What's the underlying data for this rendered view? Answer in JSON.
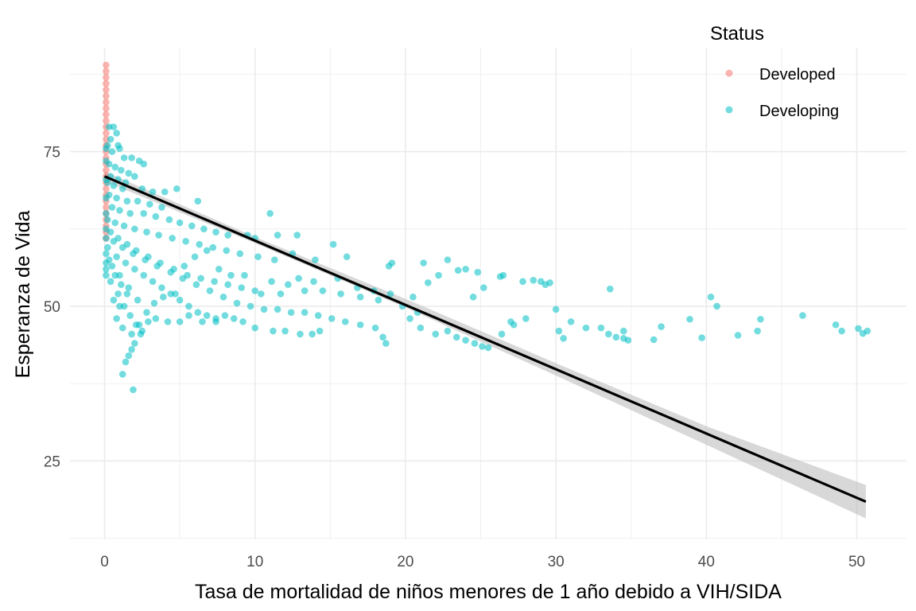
{
  "chart_data": {
    "type": "scatter",
    "title": "",
    "xlabel": "Tasa de mortalidad de niños menores de 1 año debido a VIH/SIDA",
    "ylabel": "Esperanza de Vida",
    "xlim": [
      -2.3,
      53.3
    ],
    "ylim": [
      12.3,
      91.8
    ],
    "x_ticks": [
      0,
      10,
      20,
      30,
      40,
      50
    ],
    "y_ticks": [
      25,
      50,
      75
    ],
    "grid": true,
    "legend": {
      "title": "Status",
      "position": "top-right"
    },
    "colors": {
      "Developed": "#F8766D",
      "Developing": "#00BFC4",
      "fit": "#000000",
      "ribbon": "#BEBEBE"
    },
    "series": [
      {
        "name": "Developed",
        "points": [
          [
            0.1,
            89.0
          ],
          [
            0.1,
            88.0
          ],
          [
            0.1,
            87.0
          ],
          [
            0.1,
            86.0
          ],
          [
            0.1,
            85.0
          ],
          [
            0.1,
            84.0
          ],
          [
            0.1,
            83.0
          ],
          [
            0.1,
            82.0
          ],
          [
            0.1,
            81.0
          ],
          [
            0.1,
            80.0
          ],
          [
            0.1,
            79.0
          ],
          [
            0.1,
            78.0
          ],
          [
            0.1,
            77.0
          ],
          [
            0.1,
            76.0
          ],
          [
            0.1,
            75.0
          ],
          [
            0.1,
            74.0
          ],
          [
            0.1,
            73.0
          ],
          [
            0.1,
            72.0
          ],
          [
            0.1,
            71.0
          ],
          [
            0.1,
            70.0
          ],
          [
            0.1,
            69.0
          ],
          [
            0.1,
            68.0
          ],
          [
            0.1,
            67.0
          ],
          [
            0.1,
            66.0
          ],
          [
            0.1,
            65.0
          ],
          [
            0.1,
            64.0
          ],
          [
            0.1,
            63.0
          ],
          [
            0.1,
            62.0
          ],
          [
            0.1,
            61.0
          ]
        ]
      },
      {
        "name": "Developing",
        "points": [
          [
            0.3,
            79.0
          ],
          [
            0.6,
            79.0
          ],
          [
            0.8,
            78.0
          ],
          [
            0.4,
            77.0
          ],
          [
            0.9,
            76.0
          ],
          [
            0.2,
            76.0
          ],
          [
            0.5,
            75.0
          ],
          [
            1.0,
            75.5
          ],
          [
            1.3,
            74.0
          ],
          [
            1.8,
            74.0
          ],
          [
            2.3,
            73.5
          ],
          [
            2.6,
            73.0
          ],
          [
            0.3,
            73.0
          ],
          [
            0.7,
            72.5
          ],
          [
            1.1,
            72.0
          ],
          [
            1.6,
            71.5
          ],
          [
            2.0,
            71.0
          ],
          [
            0.4,
            71.0
          ],
          [
            0.9,
            70.5
          ],
          [
            1.4,
            70.0
          ],
          [
            0.2,
            70.0
          ],
          [
            0.6,
            69.5
          ],
          [
            1.2,
            69.0
          ],
          [
            2.5,
            69.0
          ],
          [
            3.2,
            68.5
          ],
          [
            4.0,
            68.5
          ],
          [
            4.8,
            69.0
          ],
          [
            0.3,
            68.0
          ],
          [
            0.8,
            67.5
          ],
          [
            1.5,
            67.0
          ],
          [
            2.2,
            67.0
          ],
          [
            3.0,
            66.5
          ],
          [
            3.8,
            66.0
          ],
          [
            6.2,
            67.0
          ],
          [
            0.5,
            66.0
          ],
          [
            1.0,
            65.5
          ],
          [
            1.7,
            65.0
          ],
          [
            2.6,
            65.0
          ],
          [
            3.4,
            64.5
          ],
          [
            4.3,
            64.0
          ],
          [
            5.0,
            63.5
          ],
          [
            5.8,
            63.0
          ],
          [
            6.6,
            62.5
          ],
          [
            7.4,
            62.0
          ],
          [
            8.2,
            61.5
          ],
          [
            9.5,
            61.5
          ],
          [
            10.0,
            61.0
          ],
          [
            11.0,
            65.0
          ],
          [
            11.5,
            61.5
          ],
          [
            12.8,
            61.5
          ],
          [
            0.2,
            64.0
          ],
          [
            0.7,
            63.5
          ],
          [
            1.3,
            63.0
          ],
          [
            2.0,
            62.5
          ],
          [
            2.8,
            62.0
          ],
          [
            3.6,
            61.5
          ],
          [
            4.5,
            61.0
          ],
          [
            5.4,
            60.5
          ],
          [
            6.3,
            60.0
          ],
          [
            7.2,
            59.5
          ],
          [
            8.1,
            59.0
          ],
          [
            9.0,
            58.5
          ],
          [
            10.2,
            58.0
          ],
          [
            11.3,
            57.5
          ],
          [
            12.5,
            58.5
          ],
          [
            14.0,
            57.5
          ],
          [
            15.2,
            60.0
          ],
          [
            16.1,
            58.0
          ],
          [
            0.4,
            62.0
          ],
          [
            0.9,
            61.0
          ],
          [
            1.5,
            60.0
          ],
          [
            2.1,
            59.0
          ],
          [
            2.9,
            58.0
          ],
          [
            3.7,
            57.0
          ],
          [
            4.6,
            56.0
          ],
          [
            5.5,
            55.0
          ],
          [
            6.4,
            54.5
          ],
          [
            7.3,
            54.0
          ],
          [
            8.2,
            53.5
          ],
          [
            9.1,
            53.0
          ],
          [
            10.0,
            52.5
          ],
          [
            11.1,
            54.0
          ],
          [
            12.2,
            53.5
          ],
          [
            13.3,
            52.5
          ],
          [
            14.5,
            52.5
          ],
          [
            15.7,
            52.0
          ],
          [
            17.0,
            51.5
          ],
          [
            18.2,
            51.0
          ],
          [
            19.0,
            52.0
          ],
          [
            20.5,
            51.5
          ],
          [
            0.6,
            60.5
          ],
          [
            1.2,
            59.5
          ],
          [
            1.9,
            58.5
          ],
          [
            2.7,
            57.5
          ],
          [
            3.5,
            56.5
          ],
          [
            4.4,
            55.5
          ],
          [
            5.2,
            54.5
          ],
          [
            6.1,
            53.5
          ],
          [
            7.0,
            52.5
          ],
          [
            7.9,
            51.5
          ],
          [
            8.8,
            50.5
          ],
          [
            9.7,
            50.0
          ],
          [
            10.6,
            49.5
          ],
          [
            11.5,
            49.5
          ],
          [
            12.4,
            49.0
          ],
          [
            13.3,
            49.0
          ],
          [
            14.2,
            48.5
          ],
          [
            15.1,
            48.0
          ],
          [
            16.0,
            47.5
          ],
          [
            17.0,
            47.0
          ],
          [
            18.0,
            46.5
          ],
          [
            18.5,
            45.0
          ],
          [
            18.7,
            44.0
          ],
          [
            0.8,
            58.0
          ],
          [
            1.4,
            57.0
          ],
          [
            2.0,
            56.0
          ],
          [
            2.6,
            55.0
          ],
          [
            3.2,
            54.0
          ],
          [
            3.8,
            53.0
          ],
          [
            4.4,
            52.0
          ],
          [
            5.0,
            51.0
          ],
          [
            5.6,
            50.0
          ],
          [
            6.2,
            49.0
          ],
          [
            6.8,
            48.5
          ],
          [
            7.4,
            48.0
          ],
          [
            8.0,
            48.5
          ],
          [
            8.6,
            48.0
          ],
          [
            9.2,
            47.5
          ],
          [
            10.0,
            46.5
          ],
          [
            11.2,
            46.0
          ],
          [
            12.0,
            46.0
          ],
          [
            13.0,
            45.5
          ],
          [
            13.8,
            45.5
          ],
          [
            14.3,
            46.0
          ],
          [
            1.0,
            55.0
          ],
          [
            1.6,
            53.0
          ],
          [
            2.2,
            51.0
          ],
          [
            2.8,
            49.0
          ],
          [
            3.4,
            48.0
          ],
          [
            4.2,
            47.5
          ],
          [
            5.0,
            47.5
          ],
          [
            5.6,
            48.5
          ],
          [
            6.5,
            47.5
          ],
          [
            7.4,
            47.5
          ],
          [
            0.9,
            52.0
          ],
          [
            1.3,
            50.0
          ],
          [
            1.7,
            48.5
          ],
          [
            2.1,
            47.0
          ],
          [
            2.4,
            45.5
          ],
          [
            2.0,
            44.0
          ],
          [
            1.8,
            43.0
          ],
          [
            1.6,
            42.0
          ],
          [
            1.4,
            41.0
          ],
          [
            1.2,
            39.0
          ],
          [
            1.9,
            36.5
          ],
          [
            2.5,
            46.0
          ],
          [
            2.9,
            47.5
          ],
          [
            3.3,
            50.5
          ],
          [
            3.9,
            51.5
          ],
          [
            4.7,
            52.0
          ],
          [
            5.3,
            56.5
          ],
          [
            6.0,
            58.0
          ],
          [
            6.8,
            59.0
          ],
          [
            7.6,
            56.0
          ],
          [
            8.4,
            55.0
          ],
          [
            9.3,
            55.0
          ],
          [
            10.4,
            52.0
          ],
          [
            11.7,
            52.0
          ],
          [
            12.9,
            54.5
          ],
          [
            13.9,
            54.0
          ],
          [
            15.5,
            54.5
          ],
          [
            16.8,
            53.0
          ],
          [
            17.9,
            52.5
          ],
          [
            18.9,
            56.5
          ],
          [
            19.1,
            57.0
          ],
          [
            21.2,
            57.0
          ],
          [
            21.5,
            53.8
          ],
          [
            22.2,
            55.0
          ],
          [
            22.8,
            57.5
          ],
          [
            23.5,
            55.8
          ],
          [
            24.0,
            56.0
          ],
          [
            24.8,
            55.5
          ],
          [
            25.2,
            53.0
          ],
          [
            24.5,
            51.5
          ],
          [
            26.3,
            54.8
          ],
          [
            26.5,
            55.0
          ],
          [
            27.8,
            54.0
          ],
          [
            28.5,
            54.2
          ],
          [
            29.0,
            54.0
          ],
          [
            29.3,
            53.5
          ],
          [
            29.6,
            53.8
          ],
          [
            33.6,
            52.8
          ],
          [
            30.0,
            49.5
          ],
          [
            27.0,
            47.5
          ],
          [
            28.0,
            48.0
          ],
          [
            31.0,
            47.5
          ],
          [
            32.0,
            46.5
          ],
          [
            33.0,
            46.5
          ],
          [
            34.5,
            46.0
          ],
          [
            26.4,
            45.5
          ],
          [
            27.2,
            47.0
          ],
          [
            20.3,
            48.0
          ],
          [
            21.0,
            46.5
          ],
          [
            22.0,
            45.5
          ],
          [
            22.8,
            46.0
          ],
          [
            23.4,
            45.0
          ],
          [
            24.0,
            44.5
          ],
          [
            24.6,
            44.0
          ],
          [
            25.1,
            43.5
          ],
          [
            25.5,
            43.3
          ],
          [
            19.8,
            50.0
          ],
          [
            20.8,
            49.0
          ],
          [
            30.2,
            46.0
          ],
          [
            30.5,
            44.8
          ],
          [
            33.5,
            45.5
          ],
          [
            34.0,
            45.0
          ],
          [
            34.5,
            44.8
          ],
          [
            34.8,
            44.5
          ],
          [
            36.5,
            44.6
          ],
          [
            37.0,
            46.7
          ],
          [
            38.9,
            47.9
          ],
          [
            39.7,
            44.9
          ],
          [
            40.3,
            51.5
          ],
          [
            40.7,
            50.0
          ],
          [
            42.1,
            45.3
          ],
          [
            43.4,
            46.0
          ],
          [
            43.6,
            47.9
          ],
          [
            46.4,
            48.5
          ],
          [
            48.6,
            47.0
          ],
          [
            49.0,
            46.0
          ],
          [
            50.1,
            46.4
          ],
          [
            50.4,
            45.6
          ],
          [
            50.7,
            46.0
          ],
          [
            0.1,
            61.0
          ],
          [
            0.1,
            62.5
          ],
          [
            0.1,
            65.0
          ],
          [
            0.1,
            67.5
          ],
          [
            0.1,
            70.5
          ],
          [
            0.1,
            73.5
          ],
          [
            0.1,
            75.5
          ],
          [
            0.1,
            57.0
          ],
          [
            0.1,
            58.5
          ],
          [
            0.1,
            56.0
          ],
          [
            0.1,
            55.0
          ],
          [
            0.2,
            59.5
          ],
          [
            0.3,
            57.5
          ],
          [
            0.5,
            56.5
          ],
          [
            0.7,
            55.0
          ],
          [
            0.4,
            54.0
          ],
          [
            1.1,
            53.5
          ],
          [
            1.5,
            52.0
          ],
          [
            0.6,
            51.0
          ],
          [
            1.0,
            50.0
          ],
          [
            0.8,
            48.0
          ],
          [
            1.2,
            46.5
          ],
          [
            1.8,
            45.5
          ],
          [
            2.3,
            47.0
          ]
        ]
      }
    ],
    "fit": {
      "type": "linear",
      "x": [
        0.0,
        50.6
      ],
      "y": [
        71.0,
        18.4
      ],
      "se_band": {
        "x": [
          0,
          10,
          20,
          30,
          40,
          50.6
        ],
        "lower": [
          70.2,
          60.2,
          49.8,
          38.8,
          27.6,
          15.7
        ],
        "upper": [
          71.8,
          61.2,
          51.2,
          40.8,
          30.6,
          21.1
        ]
      }
    }
  }
}
